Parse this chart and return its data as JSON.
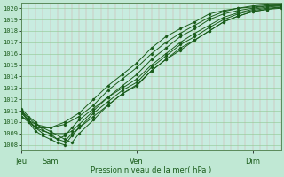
{
  "xlabel": "Pression niveau de la mer( hPa )",
  "ylim": [
    1007.5,
    1020.5
  ],
  "xlim": [
    0,
    108
  ],
  "yticks": [
    1008,
    1009,
    1010,
    1011,
    1012,
    1013,
    1014,
    1015,
    1016,
    1017,
    1018,
    1019,
    1020
  ],
  "xtick_positions": [
    0,
    12,
    48,
    96
  ],
  "xtick_labels": [
    "Jeu",
    "Sam",
    "Ven",
    "Dim"
  ],
  "bg_color": "#c0e8d4",
  "plot_bg_color": "#c8ece0",
  "line_color": "#1a5c1a",
  "grid_color_v": "#d4a0a0",
  "grid_color_h": "#90c890",
  "series": [
    [
      0,
      1011.2,
      3,
      1010.5,
      6,
      1010.0,
      9,
      1009.3,
      12,
      1009.0,
      15,
      1008.5,
      18,
      1008.3,
      21,
      1009.0,
      24,
      1009.5,
      30,
      1010.5,
      36,
      1011.5,
      42,
      1012.5,
      48,
      1013.2,
      54,
      1014.5,
      60,
      1015.5,
      66,
      1016.5,
      72,
      1017.2,
      78,
      1018.0,
      84,
      1018.8,
      90,
      1019.3,
      96,
      1019.7,
      102,
      1019.9,
      108,
      1020.0
    ],
    [
      0,
      1011.0,
      3,
      1010.2,
      6,
      1009.5,
      9,
      1009.0,
      12,
      1008.8,
      15,
      1008.5,
      18,
      1008.8,
      21,
      1009.5,
      24,
      1010.2,
      30,
      1011.2,
      36,
      1012.2,
      42,
      1013.0,
      48,
      1013.8,
      54,
      1015.0,
      60,
      1016.0,
      66,
      1017.0,
      72,
      1017.8,
      78,
      1018.5,
      84,
      1019.2,
      90,
      1019.6,
      96,
      1019.9,
      102,
      1020.1,
      108,
      1020.2
    ],
    [
      0,
      1011.0,
      3,
      1010.0,
      6,
      1009.2,
      9,
      1008.8,
      12,
      1008.5,
      15,
      1008.2,
      18,
      1008.0,
      21,
      1008.8,
      24,
      1009.5,
      30,
      1010.8,
      36,
      1011.8,
      42,
      1012.8,
      48,
      1013.5,
      54,
      1014.8,
      60,
      1015.8,
      66,
      1016.8,
      72,
      1017.5,
      78,
      1018.3,
      84,
      1019.0,
      90,
      1019.5,
      96,
      1019.8,
      102,
      1020.0,
      108,
      1020.1
    ],
    [
      0,
      1011.0,
      6,
      1009.8,
      12,
      1009.2,
      18,
      1008.5,
      21,
      1008.2,
      24,
      1009.0,
      30,
      1010.2,
      36,
      1011.5,
      42,
      1012.5,
      48,
      1013.3,
      54,
      1014.5,
      60,
      1015.5,
      66,
      1016.3,
      72,
      1017.2,
      78,
      1018.0,
      84,
      1018.8,
      90,
      1019.3,
      96,
      1019.7,
      102,
      1019.9,
      108,
      1020.1
    ],
    [
      0,
      1010.8,
      6,
      1009.5,
      12,
      1009.0,
      18,
      1009.0,
      21,
      1009.2,
      24,
      1009.8,
      30,
      1011.0,
      36,
      1012.2,
      42,
      1013.2,
      48,
      1014.2,
      54,
      1015.5,
      60,
      1016.5,
      66,
      1017.5,
      72,
      1018.2,
      78,
      1019.0,
      84,
      1019.5,
      90,
      1019.8,
      96,
      1020.0,
      102,
      1020.2,
      108,
      1020.3
    ],
    [
      0,
      1010.5,
      6,
      1009.8,
      12,
      1009.5,
      18,
      1009.8,
      24,
      1010.5,
      30,
      1011.5,
      36,
      1012.8,
      42,
      1013.8,
      48,
      1014.8,
      54,
      1016.0,
      60,
      1017.0,
      66,
      1017.8,
      72,
      1018.5,
      78,
      1019.2,
      84,
      1019.7,
      90,
      1020.0,
      96,
      1020.2,
      102,
      1020.3,
      108,
      1020.3
    ],
    [
      0,
      1010.5,
      6,
      1009.5,
      12,
      1009.5,
      18,
      1010.0,
      24,
      1010.8,
      30,
      1012.0,
      36,
      1013.2,
      42,
      1014.2,
      48,
      1015.2,
      54,
      1016.5,
      60,
      1017.5,
      66,
      1018.2,
      72,
      1018.8,
      78,
      1019.5,
      84,
      1019.8,
      90,
      1020.0,
      96,
      1020.1,
      102,
      1020.2,
      108,
      1020.2
    ]
  ]
}
